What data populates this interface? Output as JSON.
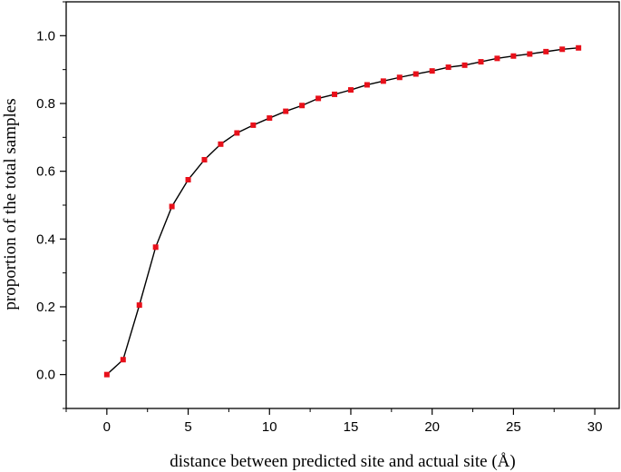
{
  "chart_data": {
    "type": "line",
    "title": "",
    "xlabel": "distance between predicted site and actual site (Å)",
    "ylabel": "proportion of the total samples",
    "xlim": [
      -2.5,
      31.5
    ],
    "ylim": [
      -0.1,
      1.1
    ],
    "xticks": [
      0,
      5,
      10,
      15,
      20,
      25,
      30
    ],
    "yticks": [
      0.0,
      0.2,
      0.4,
      0.6,
      0.8,
      1.0
    ],
    "xtick_labels": [
      "0",
      "5",
      "10",
      "15",
      "20",
      "25",
      "30"
    ],
    "ytick_labels": [
      "0.0",
      "0.2",
      "0.4",
      "0.6",
      "0.8",
      "1.0"
    ],
    "grid": false,
    "marker": "square",
    "line_color": "#000000",
    "marker_color": "#e8101a",
    "series": [
      {
        "x": [
          0,
          1,
          2,
          3,
          4,
          5,
          6,
          7,
          8,
          9,
          10,
          11,
          12,
          13,
          14,
          15,
          16,
          17,
          18,
          19,
          20,
          21,
          22,
          23,
          24,
          25,
          26,
          27,
          28,
          29
        ],
        "y": [
          0.0,
          0.044,
          0.205,
          0.376,
          0.496,
          0.575,
          0.634,
          0.68,
          0.713,
          0.736,
          0.757,
          0.777,
          0.794,
          0.815,
          0.827,
          0.84,
          0.855,
          0.866,
          0.877,
          0.887,
          0.896,
          0.907,
          0.913,
          0.923,
          0.933,
          0.94,
          0.946,
          0.953,
          0.96,
          0.964
        ]
      }
    ]
  }
}
